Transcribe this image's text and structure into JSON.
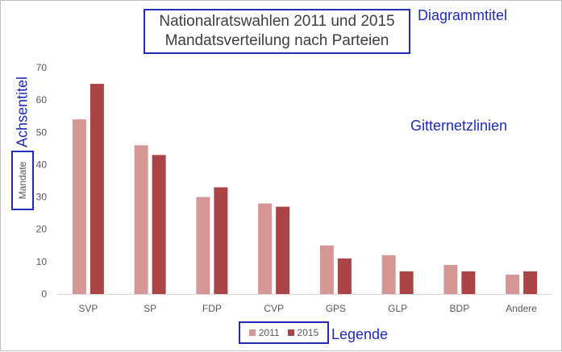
{
  "chart_data": {
    "type": "bar",
    "title_lines": [
      "Nationalratswahlen 2011 und 2015",
      "Mandatsverteilung nach Parteien"
    ],
    "ylabel": "Mandate",
    "xlabel": "",
    "categories": [
      "SVP",
      "SP",
      "FDP",
      "CVP",
      "GPS",
      "GLP",
      "BDP",
      "Andere"
    ],
    "series": [
      {
        "name": "2011",
        "color": "#d59796",
        "values": [
          54,
          46,
          30,
          28,
          15,
          12,
          9,
          6
        ]
      },
      {
        "name": "2015",
        "color": "#aa4446",
        "values": [
          65,
          43,
          33,
          27,
          11,
          7,
          7,
          7
        ]
      }
    ],
    "ylim": [
      0,
      70
    ],
    "yticks": [
      0,
      10,
      20,
      30,
      40,
      50,
      60,
      70
    ],
    "grid": false,
    "legend_position": "bottom"
  },
  "annotations": {
    "title": "Diagrammtitel",
    "axis_title": "Achsentitel",
    "gridlines": "Gitternetzlinien",
    "legend": "Legende"
  },
  "colors": {
    "annotation": "#1f2bb8",
    "text": "#595959",
    "axis_line": "#d9d9d9"
  }
}
